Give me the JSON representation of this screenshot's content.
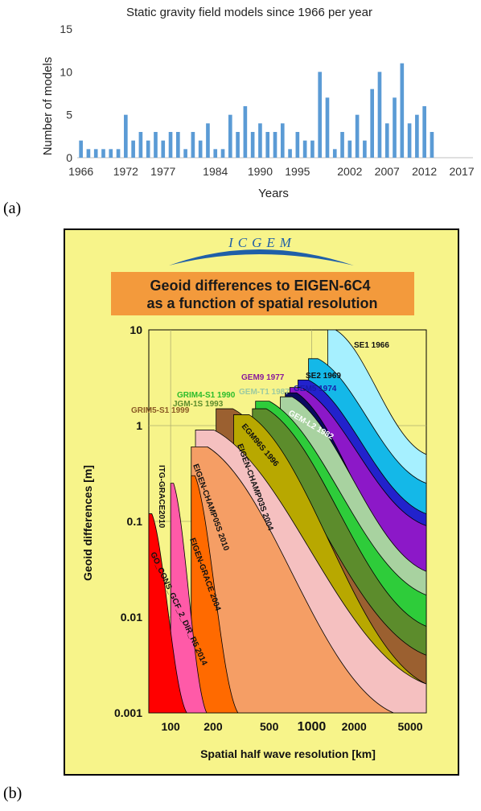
{
  "labels": {
    "a": "(a)",
    "b": "(b)"
  },
  "colors": {
    "bar": "#5b9bd5",
    "panel_bg": "#f7f48a",
    "title_box": "#f39a3c",
    "arc": "#1f5fa8"
  },
  "chart_data": [
    {
      "type": "bar",
      "title": "Static gravity field models since 1966 per year",
      "xlabel": "Years",
      "ylabel": "Number of models",
      "ylim": [
        0,
        15
      ],
      "yticks": [
        0,
        5,
        10,
        15
      ],
      "xtick_labels": [
        "1966",
        "1972",
        "1977",
        "1984",
        "1990",
        "1995",
        "2002",
        "2007",
        "2012",
        "2017"
      ],
      "grid": false,
      "categories": [
        1966,
        1967,
        1968,
        1969,
        1970,
        1971,
        1972,
        1973,
        1974,
        1975,
        1976,
        1977,
        1978,
        1979,
        1980,
        1981,
        1982,
        1983,
        1984,
        1985,
        1986,
        1987,
        1988,
        1989,
        1990,
        1991,
        1992,
        1993,
        1994,
        1995,
        1996,
        1997,
        1998,
        1999,
        2000,
        2001,
        2002,
        2003,
        2004,
        2005,
        2006,
        2007,
        2008,
        2009,
        2010,
        2011,
        2012,
        2013,
        2014,
        2015,
        2016,
        2017,
        2018
      ],
      "values": [
        2,
        1,
        1,
        1,
        1,
        1,
        5,
        2,
        3,
        2,
        3,
        2,
        3,
        3,
        1,
        3,
        2,
        4,
        1,
        1,
        5,
        3,
        6,
        3,
        4,
        3,
        3,
        4,
        1,
        3,
        2,
        2,
        10,
        7,
        1,
        3,
        2,
        5,
        2,
        8,
        10,
        4,
        7,
        11,
        4,
        5,
        6,
        3,
        0,
        0,
        0,
        0,
        0
      ]
    },
    {
      "type": "area",
      "logo": "ICGEM",
      "title": "Geoid differences to EIGEN-6C4\nas a function of spatial resolution",
      "xlabel": "Spatial half wave resolution [km]",
      "ylabel": "Geoid differences [m]",
      "x_scale": "log",
      "y_scale": "log",
      "xlim": [
        70,
        6500
      ],
      "ylim": [
        0.001,
        10
      ],
      "xtick_labels": [
        "100",
        "200",
        "500",
        "1000",
        "2000",
        "5000"
      ],
      "ytick_labels": [
        "10",
        "1",
        "0.1",
        "0.01",
        "0.001"
      ],
      "grid": true,
      "series": [
        {
          "name": "SE1",
          "year": "1966",
          "color": "#a6f0ff",
          "x": [
            1300,
            6500
          ],
          "y": [
            10,
            0.5
          ]
        },
        {
          "name": "SE2",
          "year": "1969",
          "color": "#14b8e8",
          "x": [
            950,
            6500
          ],
          "y": [
            5,
            0.25
          ]
        },
        {
          "name": "GEM5",
          "year": "1974",
          "color": "#2222cc",
          "x": [
            800,
            6500
          ],
          "y": [
            3,
            0.12
          ]
        },
        {
          "name": "GEM9",
          "year": "1977",
          "color": "#8c18c8",
          "x": [
            700,
            6500
          ],
          "y": [
            2.5,
            0.09
          ]
        },
        {
          "name": "GEM-L2",
          "year": "1982",
          "color": "#0a0a60",
          "x": [
            650,
            6500
          ],
          "y": [
            2.2,
            0.02
          ]
        },
        {
          "name": "GEM-T1",
          "year": "1987",
          "color": "#a8d2a0",
          "x": [
            600,
            6500
          ],
          "y": [
            2,
            0.03
          ]
        },
        {
          "name": "GRIM4-S1",
          "year": "1990",
          "color": "#2ecc3a",
          "x": [
            400,
            6500
          ],
          "y": [
            1.8,
            0.017
          ]
        },
        {
          "name": "JGM-1S",
          "year": "1993",
          "color": "#5c8c2c",
          "x": [
            380,
            6500
          ],
          "y": [
            1.5,
            0.008
          ]
        },
        {
          "name": "GRIM5-S1",
          "year": "1999",
          "color": "#9b6030",
          "x": [
            210,
            6500
          ],
          "y": [
            1.5,
            0.004
          ]
        },
        {
          "name": "EGM96S",
          "year": "1996",
          "color": "#b8a800",
          "x": [
            280,
            6500
          ],
          "y": [
            1.3,
            0.002
          ]
        },
        {
          "name": "EIGEN-CHAMP03S",
          "year": "2004",
          "color": "#f5c0c0",
          "x": [
            150,
            6500
          ],
          "y": [
            0.9,
            0.002
          ]
        },
        {
          "name": "EIGEN-CHAMP05S",
          "year": "2010",
          "color": "#f59e65",
          "x": [
            140,
            3800
          ],
          "y": [
            0.6,
            0.001
          ]
        },
        {
          "name": "EIGEN-GRACE",
          "year": "2004",
          "color": "#ff6a00",
          "x": [
            140,
            300
          ],
          "y": [
            0.3,
            0.001
          ]
        },
        {
          "name": "ITG-GRACE2010",
          "year": "",
          "color": "#ff5aa8",
          "x": [
            100,
            180
          ],
          "y": [
            0.25,
            0.001
          ]
        },
        {
          "name": "GO_CONS_GCF_2_DIR_R5",
          "year": "2014",
          "color": "#ff0000",
          "x": [
            70,
            130
          ],
          "y": [
            0.12,
            0.001
          ]
        }
      ]
    }
  ]
}
